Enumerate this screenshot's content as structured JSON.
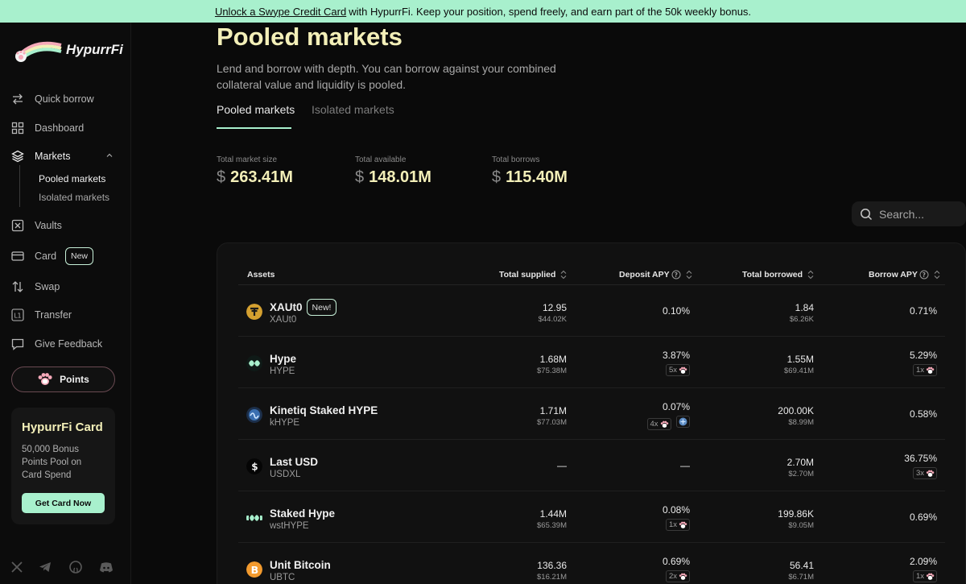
{
  "banner": {
    "link": "Unlock a Swype Credit Card",
    "text": "with HypurrFi. Keep your position, spend freely, and earn part of the 50k weekly bonus."
  },
  "app": {
    "name": "HypurrFi"
  },
  "sidebar": {
    "items": [
      {
        "label": "Quick borrow",
        "icon": "swap-arrows-icon"
      },
      {
        "label": "Dashboard",
        "icon": "grid-icon"
      },
      {
        "label": "Markets",
        "icon": "layers-icon"
      },
      {
        "label": "Vaults",
        "icon": "vault-icon"
      },
      {
        "label": "Card",
        "icon": "card-icon",
        "badge": "New"
      },
      {
        "label": "Swap",
        "icon": "swap-vertical-icon"
      },
      {
        "label": "Transfer",
        "icon": "transfer-l1-icon"
      },
      {
        "label": "Give Feedback",
        "icon": "chat-icon"
      }
    ],
    "markets_sub": [
      "Pooled markets",
      "Isolated markets"
    ],
    "points_label": "Points",
    "promo": {
      "title": "HypurrFi Card",
      "desc": "50,000 Bonus Points Pool on Card Spend",
      "button": "Get Card Now"
    },
    "social": [
      "x-icon",
      "telegram-icon",
      "github-icon",
      "discord-icon"
    ]
  },
  "page": {
    "title": "Pooled markets",
    "subtitle": "Lend and borrow with depth. You can borrow against your combined collateral value and liquidity is pooled.",
    "tabs": [
      "Pooled markets",
      "Isolated markets"
    ],
    "stats": [
      {
        "label": "Total market size",
        "currency": "$",
        "value": "263.41M"
      },
      {
        "label": "Total available",
        "currency": "$",
        "value": "148.01M"
      },
      {
        "label": "Total borrows",
        "currency": "$",
        "value": "115.40M"
      }
    ],
    "search_placeholder": "Search..."
  },
  "table": {
    "headers": {
      "assets": "Assets",
      "total_supplied": "Total supplied",
      "deposit_apy": "Deposit APY",
      "total_borrowed": "Total borrowed",
      "borrow_apy": "Borrow APY"
    },
    "rows": [
      {
        "name": "XAUt0",
        "symbol": "XAUt0",
        "badge": "New!",
        "supplied": "12.95",
        "supplied_usd": "$44.02K",
        "deposit_apy": "0.10%",
        "borrowed": "1.84",
        "borrowed_usd": "$6.26K",
        "borrow_apy": "0.71%"
      },
      {
        "name": "Hype",
        "symbol": "HYPE",
        "supplied": "1.68M",
        "supplied_usd": "$75.38M",
        "deposit_apy": "3.87%",
        "deposit_mult": "5x",
        "borrowed": "1.55M",
        "borrowed_usd": "$69.41M",
        "borrow_apy": "5.29%",
        "borrow_mult": "1x"
      },
      {
        "name": "Kinetiq Staked HYPE",
        "symbol": "kHYPE",
        "supplied": "1.71M",
        "supplied_usd": "$77.03M",
        "deposit_apy": "0.07%",
        "deposit_mult": "4x",
        "borrowed": "200.00K",
        "borrowed_usd": "$8.99M",
        "borrow_apy": "0.58%"
      },
      {
        "name": "Last USD",
        "symbol": "USDXL",
        "supplied": "—",
        "supplied_usd": "",
        "deposit_apy": "—",
        "borrowed": "2.70M",
        "borrowed_usd": "$2.70M",
        "borrow_apy": "36.75%",
        "borrow_mult": "3x"
      },
      {
        "name": "Staked Hype",
        "symbol": "wstHYPE",
        "supplied": "1.44M",
        "supplied_usd": "$65.39M",
        "deposit_apy": "0.08%",
        "deposit_mult": "1x",
        "borrowed": "199.86K",
        "borrowed_usd": "$9.05M",
        "borrow_apy": "0.69%"
      },
      {
        "name": "Unit Bitcoin",
        "symbol": "UBTC",
        "supplied": "136.36",
        "supplied_usd": "$16.21M",
        "deposit_apy": "0.69%",
        "deposit_mult": "2x",
        "borrowed": "56.41",
        "borrowed_usd": "$6.71M",
        "borrow_apy": "2.09%",
        "borrow_mult": "1x"
      }
    ]
  },
  "colors": {
    "accent": "#a8f0cd",
    "title": "#f3efb8",
    "bg": "#0a0a0a"
  }
}
